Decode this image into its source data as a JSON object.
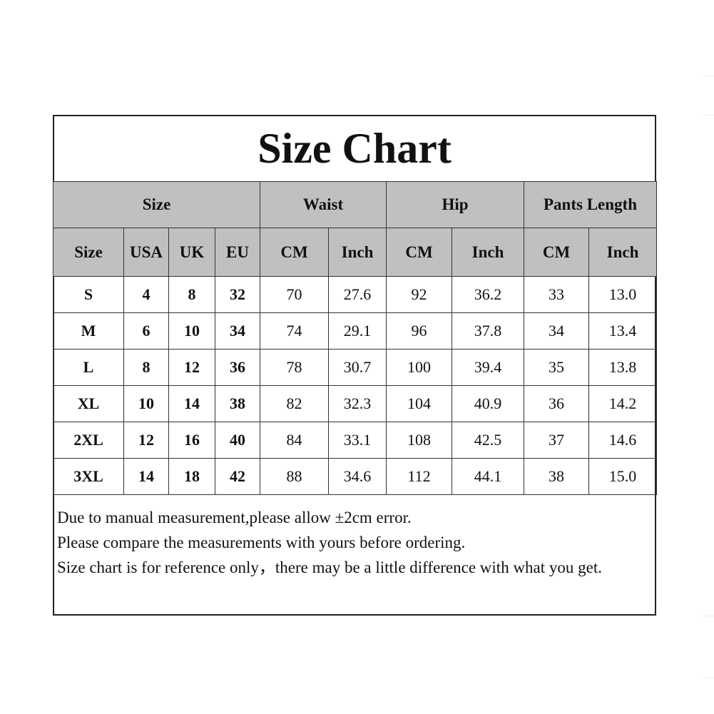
{
  "title": "Size Chart",
  "group_headers": [
    "Size",
    "Waist",
    "Hip",
    "Pants Length"
  ],
  "sub_headers": [
    "Size",
    "USA",
    "UK",
    "EU",
    "CM",
    "Inch",
    "CM",
    "Inch",
    "CM",
    "Inch"
  ],
  "rows": [
    [
      "S",
      "4",
      "8",
      "32",
      "70",
      "27.6",
      "92",
      "36.2",
      "33",
      "13.0"
    ],
    [
      "M",
      "6",
      "10",
      "34",
      "74",
      "29.1",
      "96",
      "37.8",
      "34",
      "13.4"
    ],
    [
      "L",
      "8",
      "12",
      "36",
      "78",
      "30.7",
      "100",
      "39.4",
      "35",
      "13.8"
    ],
    [
      "XL",
      "10",
      "14",
      "38",
      "82",
      "32.3",
      "104",
      "40.9",
      "36",
      "14.2"
    ],
    [
      "2XL",
      "12",
      "16",
      "40",
      "84",
      "33.1",
      "108",
      "42.5",
      "37",
      "14.6"
    ],
    [
      "3XL",
      "14",
      "18",
      "42",
      "88",
      "34.6",
      "112",
      "44.1",
      "38",
      "15.0"
    ]
  ],
  "notes": [
    "Due to manual measurement,please allow ±2cm error.",
    "Please compare the measurements with yours before ordering.",
    "Size chart is for reference only，there may be a little difference with what you get."
  ],
  "colors": {
    "header_bg": "#c0c0c0",
    "border": "#333333"
  }
}
